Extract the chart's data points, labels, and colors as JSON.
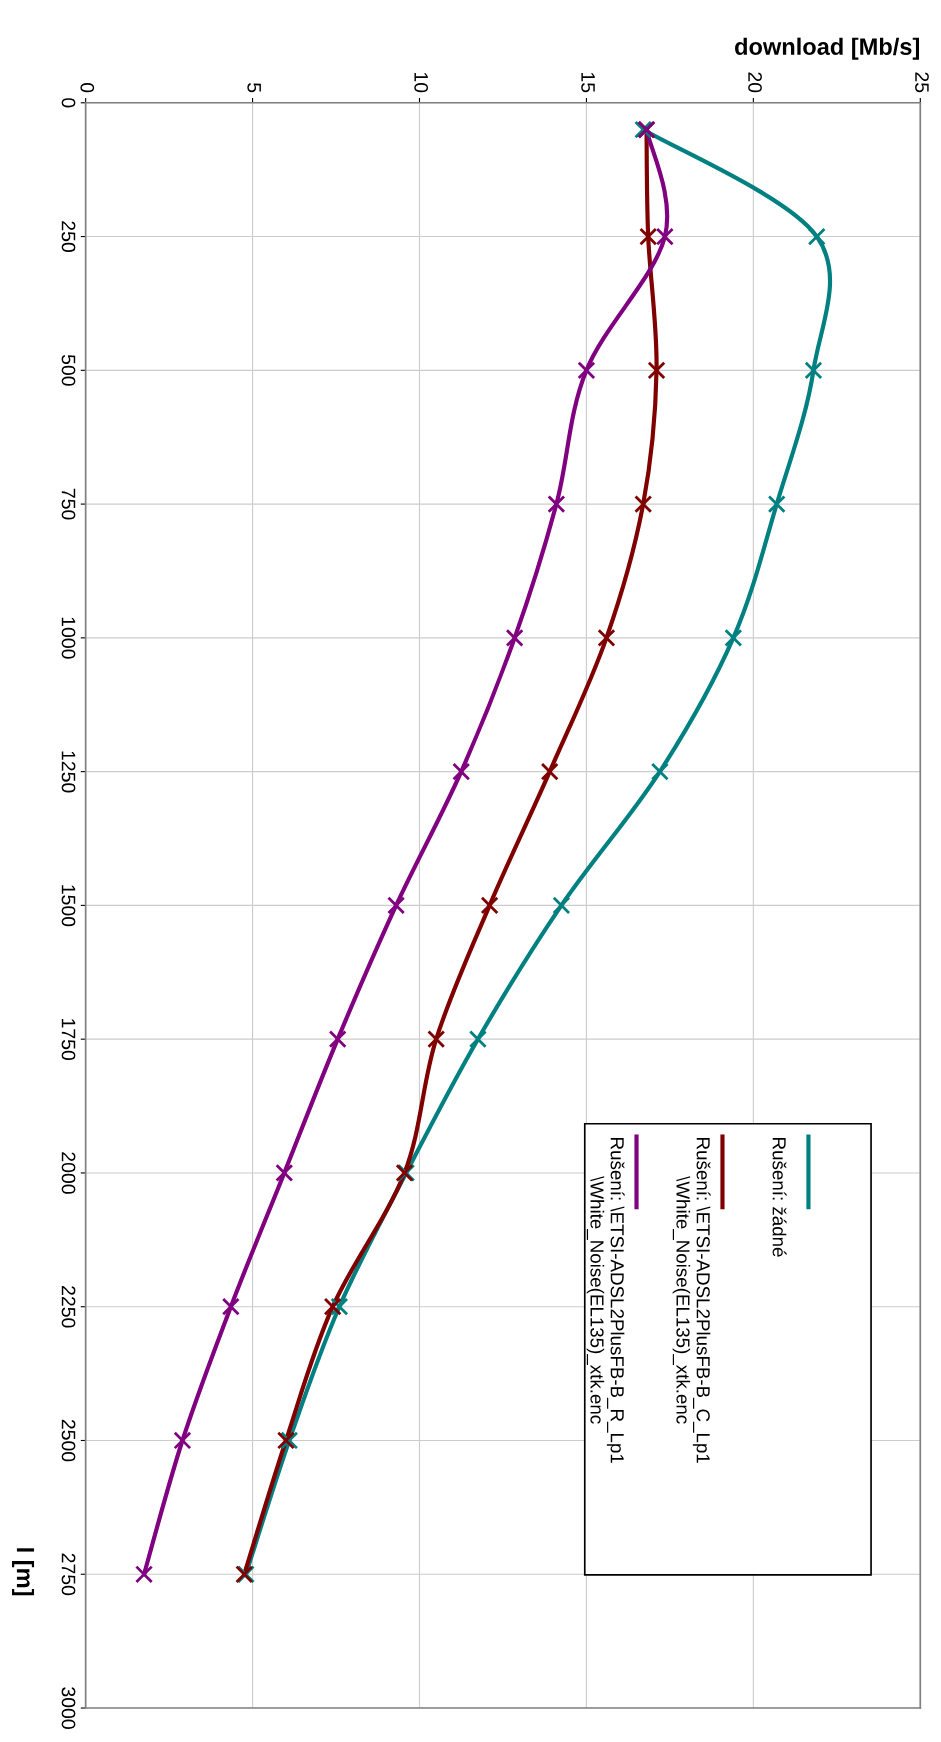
{
  "chart_data": {
    "type": "line",
    "xlabel": "download [Mb/s]",
    "ylabel": "l [m]",
    "series": [
      {
        "name": "Rušení: žádné",
        "color": "#008080",
        "x": [
          16.7,
          21.9,
          21.8,
          20.7,
          19.4,
          17.2,
          14.25,
          11.75,
          9.6,
          7.6,
          6.1,
          4.8
        ],
        "values": [
          50,
          250,
          500,
          750,
          1000,
          1250,
          1500,
          1750,
          2000,
          2250,
          2500,
          2750
        ]
      },
      {
        "name": "Rušení: \\ETSI-ADSL2PlusFB-B_C_Lp1\n\\White_Noise(EL135)_xtk.enc",
        "color": "#800000",
        "x": [
          16.8,
          16.85,
          17.1,
          16.7,
          15.6,
          13.9,
          12.1,
          10.5,
          9.55,
          7.4,
          6.0,
          4.75
        ],
        "values": [
          50,
          250,
          500,
          750,
          1000,
          1250,
          1500,
          1750,
          2000,
          2250,
          2500,
          2750
        ]
      },
      {
        "name": "Rušení: \\ETSI-ADSL2PlusFB-B_R_Lp1\n\\White_Noise(EL135)_xtk.enc",
        "color": "#800080",
        "x": [
          16.8,
          17.35,
          15.0,
          14.1,
          12.85,
          11.25,
          9.3,
          7.55,
          5.95,
          4.35,
          2.9,
          1.75
        ],
        "values": [
          50,
          250,
          500,
          750,
          1000,
          1250,
          1500,
          1750,
          2000,
          2250,
          2500,
          2750
        ]
      }
    ],
    "ylim": [
      3000,
      0
    ],
    "yticks": [
      0,
      250,
      500,
      750,
      1000,
      1250,
      1500,
      1750,
      2000,
      2250,
      2500,
      2750,
      3000
    ],
    "xlim": [
      0,
      25
    ],
    "xticks": [
      0,
      5,
      10,
      15,
      20,
      25
    ],
    "grid": true,
    "legend": "bottom right",
    "marker": "cross",
    "line_style": "solid"
  }
}
